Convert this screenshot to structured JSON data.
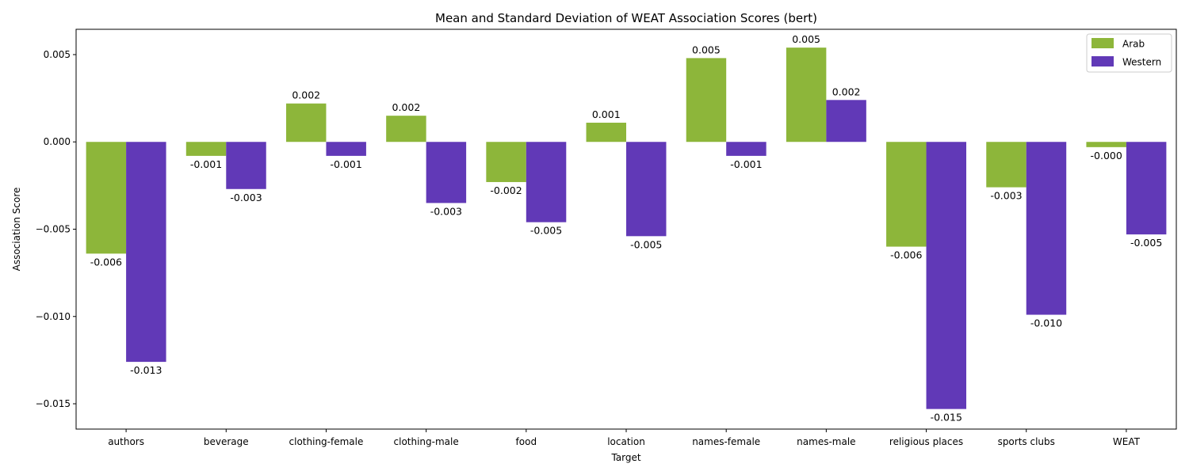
{
  "chart_data": {
    "type": "bar",
    "title": "Mean and Standard Deviation of WEAT Association Scores (bert)",
    "xlabel": "Target",
    "ylabel": "Association Score",
    "categories": [
      "authors",
      "beverage",
      "clothing-female",
      "clothing-male",
      "food",
      "location",
      "names-female",
      "names-male",
      "religious places",
      "sports clubs",
      "WEAT"
    ],
    "series": [
      {
        "name": "Arab",
        "color": "#8db63a",
        "values": [
          -0.0064,
          -0.0008,
          0.0022,
          0.0015,
          -0.0023,
          0.0011,
          0.0048,
          0.0054,
          -0.006,
          -0.0026,
          -0.0003
        ],
        "labels": [
          "-0.006",
          "-0.001",
          "0.002",
          "0.002",
          "-0.002",
          "0.001",
          "0.005",
          "0.005",
          "-0.006",
          "-0.003",
          "-0.000"
        ]
      },
      {
        "name": "Western",
        "color": "#6139b7",
        "values": [
          -0.0126,
          -0.0027,
          -0.0008,
          -0.0035,
          -0.0046,
          -0.0054,
          -0.0008,
          0.0024,
          -0.0153,
          -0.0099,
          -0.0053
        ],
        "labels": [
          "-0.013",
          "-0.003",
          "-0.001",
          "-0.003",
          "-0.005",
          "-0.005",
          "-0.001",
          "0.002",
          "-0.015",
          "-0.010",
          "-0.005"
        ]
      }
    ],
    "yticks": [
      0.005,
      0.0,
      -0.005,
      -0.01,
      -0.015
    ],
    "ytick_labels": [
      "0.005",
      "0.000",
      "−0.005",
      "−0.010",
      "−0.015"
    ],
    "ylim": [
      -0.01645,
      0.00645
    ],
    "legend_position": "top-right",
    "grid": false
  }
}
